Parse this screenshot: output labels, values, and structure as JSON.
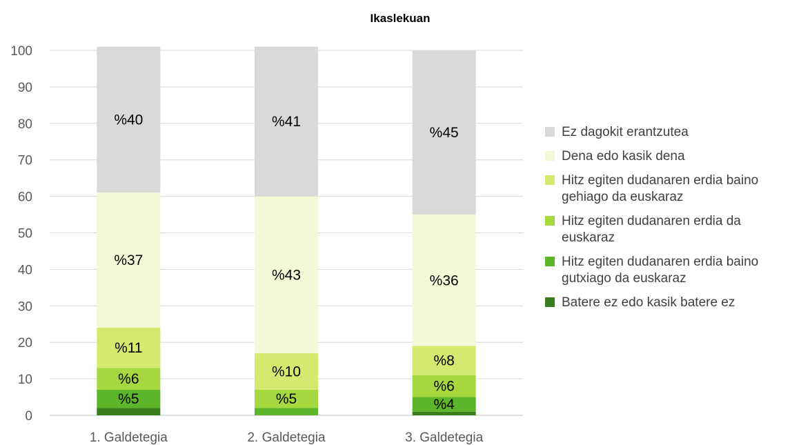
{
  "chart_data": {
    "type": "bar",
    "stacked": true,
    "title": "Ikaslekuan",
    "categories": [
      "1. Galdetegia",
      "2. Galdetegia",
      "3. Galdetegia"
    ],
    "ylim": [
      0,
      100
    ],
    "yticks": [
      0,
      10,
      20,
      30,
      40,
      50,
      60,
      70,
      80,
      90,
      100
    ],
    "grid": true,
    "legend_position": "right",
    "series": [
      {
        "name": "Batere ez edo kasik batere ez",
        "color": "#3a7d1e",
        "values": [
          2,
          0,
          1
        ],
        "labels": [
          "",
          "",
          ""
        ]
      },
      {
        "name": "Hitz egiten dudanaren erdia baino gutxiago da euskaraz",
        "color": "#5db52a",
        "values": [
          5,
          2,
          4
        ],
        "labels": [
          "%5",
          "",
          "%4"
        ]
      },
      {
        "name": "Hitz egiten dudanaren erdia da euskaraz",
        "color": "#a5d93f",
        "values": [
          6,
          5,
          6
        ],
        "labels": [
          "%6",
          "%5",
          "%6"
        ]
      },
      {
        "name": "Hitz egiten dudanaren erdia baino gehiago da euskaraz",
        "color": "#d3ea6e",
        "values": [
          11,
          10,
          8
        ],
        "labels": [
          "%11",
          "%10",
          "%8"
        ]
      },
      {
        "name": "Dena edo kasik dena",
        "color": "#f5f8d6",
        "values": [
          37,
          43,
          36
        ],
        "labels": [
          "%37",
          "%43",
          "%36"
        ]
      },
      {
        "name": "Ez dagokit erantzutea",
        "color": "#d9d9d9",
        "values": [
          40,
          41,
          45
        ],
        "labels": [
          "%40",
          "%41",
          "%45"
        ]
      }
    ],
    "legend": [
      {
        "name": "Ez dagokit erantzutea",
        "lines": [
          "Ez dagokit erantzutea"
        ],
        "color": "#d9d9d9"
      },
      {
        "name": "Dena edo kasik dena",
        "lines": [
          "Dena edo kasik dena"
        ],
        "color": "#f5f8d6"
      },
      {
        "name": "Hitz egiten dudanaren erdia baino gehiago da euskaraz",
        "lines": [
          "Hitz egiten dudanaren erdia baino",
          "gehiago da euskaraz"
        ],
        "color": "#d3ea6e"
      },
      {
        "name": "Hitz egiten dudanaren erdia da euskaraz",
        "lines": [
          "Hitz egiten dudanaren erdia da",
          "euskaraz"
        ],
        "color": "#a5d93f"
      },
      {
        "name": "Hitz egiten dudanaren erdia baino gutxiago da euskaraz",
        "lines": [
          "Hitz egiten dudanaren erdia baino",
          "gutxiago da euskaraz"
        ],
        "color": "#5db52a"
      },
      {
        "name": "Batere ez edo kasik batere ez",
        "lines": [
          "Batere ez edo kasik batere ez"
        ],
        "color": "#3a7d1e"
      }
    ]
  }
}
